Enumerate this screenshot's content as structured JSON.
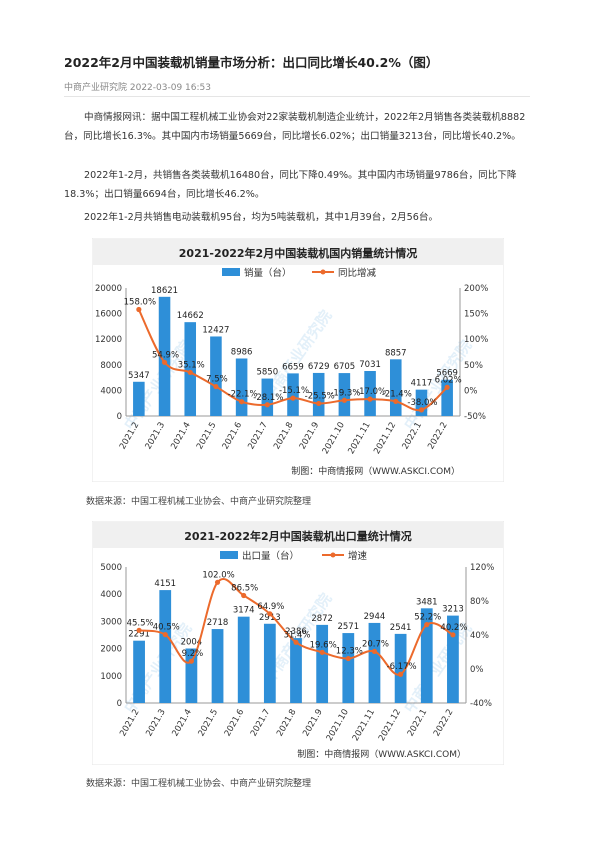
{
  "article": {
    "title": "2022年2月中国装载机销量市场分析：出口同比增长40.2%（图）",
    "meta": "中商产业研究院 2022-03-09 16:53",
    "paragraphs": [
      "中商情报网讯：据中国工程机械工业协会对22家装载机制造企业统计，2022年2月销售各类装载机8882台，同比增长16.3%。其中国内市场销量5669台，同比增长6.02%；出口销量3213台，同比增长40.2%。",
      "2022年1-2月，共销售各类装载机16480台，同比下降0.49%。其中国内市场销量9786台，同比下降18.3%；出口销量6694台，同比增长46.2%。",
      "2022年1-2月共销售电动装载机95台，均为5吨装载机，其中1月39台，2月56台。"
    ],
    "source_1": "数据来源：中国工程机械工业协会、中商产业研究院整理",
    "source_2": "数据来源：中国工程机械工业协会、中商产业研究院整理"
  },
  "chart_data": [
    {
      "type": "bar",
      "title": "2021-2022年2月中国装载机国内销量统计情况",
      "credit": "制图：中商情报网（WWW.ASKCI.COM）",
      "watermark": "中商产业研究院",
      "categories": [
        "2021.2",
        "2021.3",
        "2021.4",
        "2021.5",
        "2021.6",
        "2021.7",
        "2021.8",
        "2021.9",
        "2021.10",
        "2021.11",
        "2021.12",
        "2022.1",
        "2022.2"
      ],
      "series": [
        {
          "name": "销量（台）",
          "type": "bar",
          "axis": "left",
          "values": [
            5347,
            18621,
            14662,
            12427,
            8986,
            5850,
            6659,
            6729,
            6705,
            7031,
            8857,
            4117,
            5669
          ],
          "labels": [
            "5347",
            "18621",
            "14662",
            "12427",
            "8986",
            "5850",
            "6659",
            "6729",
            "6705",
            "7031",
            "8857",
            "4117",
            "5669"
          ]
        },
        {
          "name": "同比增减",
          "type": "line",
          "axis": "right",
          "values": [
            158.0,
            54.9,
            35.1,
            7.5,
            -22.1,
            -28.1,
            -15.1,
            -25.5,
            -19.3,
            -17.0,
            -21.4,
            -38.0,
            6.02
          ],
          "labels": [
            "158.0%",
            "54.9%",
            "35.1%",
            "7.5%",
            "-22.1%",
            "-28.1%",
            "-15.1%",
            "-25.5%",
            "-19.3%",
            "-17.0%",
            "-21.4%",
            "-38.0%",
            "6.02%"
          ]
        }
      ],
      "ylim_left": [
        0,
        20000
      ],
      "yticks_left": [
        "0",
        "4000",
        "8000",
        "12000",
        "16000",
        "20000"
      ],
      "ylim_right": [
        -50,
        200
      ],
      "yticks_right": [
        "-50%",
        "0%",
        "50%",
        "100%",
        "150%",
        "200%"
      ],
      "colors": {
        "bar": "#2e8fd8",
        "line": "#ec6a2c",
        "title_bg": "#f0f0f0"
      },
      "legend_position": "top-center",
      "grid": false
    },
    {
      "type": "bar",
      "title": "2021-2022年2月中国装载机出口量统计情况",
      "credit": "制图：中商情报网（WWW.ASKCI.COM）",
      "watermark": "中商产业研究院",
      "categories": [
        "2021.2",
        "2021.3",
        "2021.4",
        "2021.5",
        "2021.6",
        "2021.7",
        "2021.8",
        "2021.9",
        "2021.10",
        "2021.11",
        "2021.12",
        "2022.1",
        "2022.2"
      ],
      "series": [
        {
          "name": "出口量（台）",
          "type": "bar",
          "axis": "left",
          "values": [
            2291,
            4151,
            2004,
            2718,
            3174,
            2913,
            2386,
            2872,
            2571,
            2944,
            2541,
            3481,
            3213
          ],
          "labels": [
            "2291",
            "4151",
            "2004",
            "2718",
            "3174",
            "2913",
            "2386",
            "2872",
            "2571",
            "2944",
            "2541",
            "3481",
            "3213"
          ]
        },
        {
          "name": "增速",
          "type": "line",
          "axis": "right",
          "values": [
            45.5,
            40.5,
            9.2,
            102.0,
            86.5,
            64.9,
            31.4,
            19.6,
            12.3,
            20.7,
            -6.17,
            52.2,
            40.2
          ],
          "labels": [
            "45.5%",
            "40.5%",
            "9.2%",
            "102.0%",
            "86.5%",
            "64.9%",
            "31.4%",
            "19.6%",
            "12.3%",
            "20.7%",
            "-6.17%",
            "52.2%",
            "40.2%"
          ]
        }
      ],
      "ylim_left": [
        0,
        5000
      ],
      "yticks_left": [
        "0",
        "1000",
        "2000",
        "3000",
        "4000",
        "5000"
      ],
      "ylim_right": [
        -40,
        120
      ],
      "yticks_right": [
        "-40%",
        "0%",
        "40%",
        "80%",
        "120%"
      ],
      "colors": {
        "bar": "#2e8fd8",
        "line": "#ec6a2c",
        "title_bg": "#f0f0f0"
      },
      "legend_position": "top-center",
      "grid": false
    }
  ]
}
